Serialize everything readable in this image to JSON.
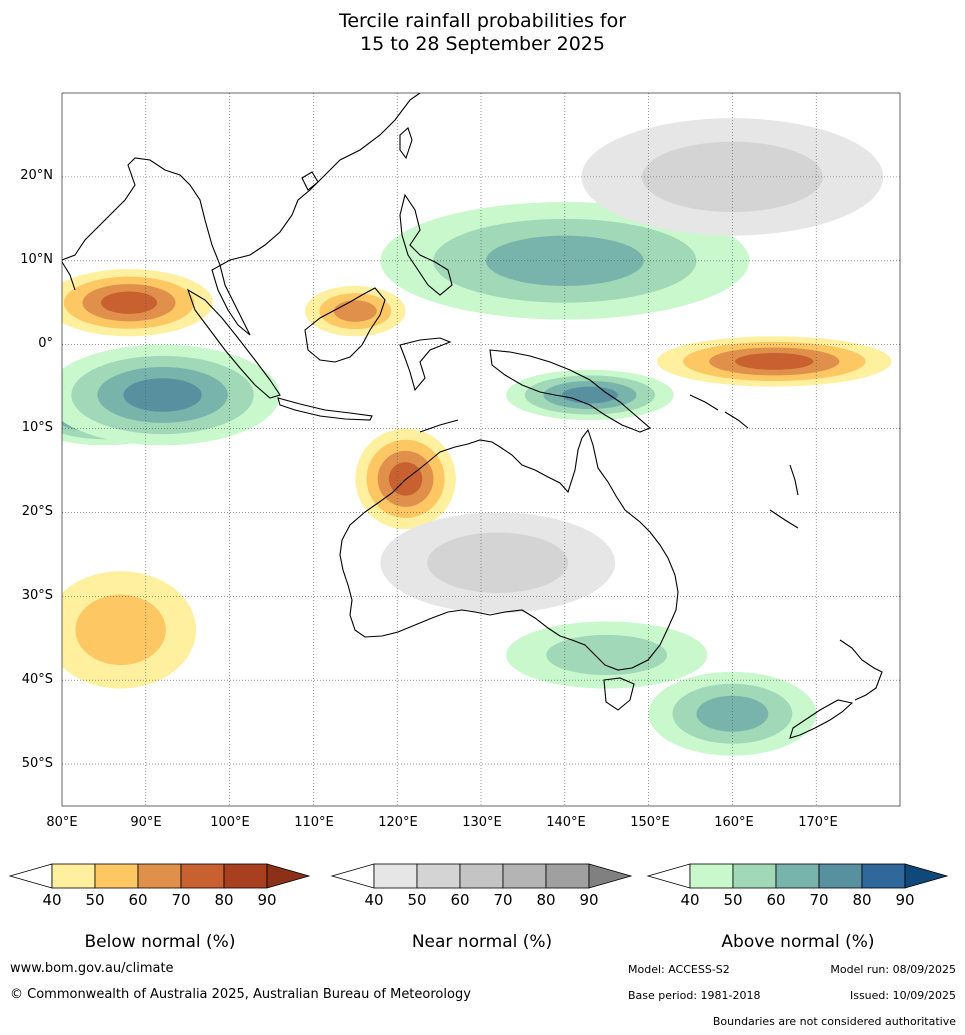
{
  "title_line1": "Tercile rainfall probabilities for",
  "title_line2": "15 to 28 September 2025",
  "lat_labels": [
    "20°N",
    "10°N",
    "0°",
    "10°S",
    "20°S",
    "30°S",
    "40°S",
    "50°S"
  ],
  "lon_labels": [
    "80°E",
    "90°E",
    "100°E",
    "110°E",
    "120°E",
    "130°E",
    "140°E",
    "150°E",
    "160°E",
    "170°E"
  ],
  "colorbars": [
    {
      "title": "Below normal (%)",
      "ticks": [
        "40",
        "50",
        "60",
        "70",
        "80",
        "90"
      ],
      "colors": [
        "#fff0a0",
        "#fdc864",
        "#e0904a",
        "#c86030",
        "#a84020"
      ],
      "tip_color": "#8c3018"
    },
    {
      "title": "Near normal (%)",
      "ticks": [
        "40",
        "50",
        "60",
        "70",
        "80",
        "90"
      ],
      "colors": [
        "#e6e6e6",
        "#d4d4d4",
        "#c4c4c4",
        "#b4b4b4",
        "#a0a0a0"
      ],
      "tip_color": "#808080"
    },
    {
      "title": "Above normal (%)",
      "ticks": [
        "40",
        "50",
        "60",
        "70",
        "80",
        "90"
      ],
      "colors": [
        "#c8f8cc",
        "#a0d8b8",
        "#78b4ac",
        "#5890a0",
        "#30689c"
      ],
      "tip_color": "#10487c"
    }
  ],
  "footer": {
    "website": "www.bom.gov.au/climate",
    "copyright": "© Commonwealth of Australia 2025, Australian Bureau of Meteorology",
    "model": "Model: ACCESS-S2",
    "model_run": "Model run: 08/09/2025",
    "base_period": "Base period: 1981-2018",
    "issued": "Issued: 10/09/2025",
    "disclaimer": "Boundaries are not considered authoritative"
  },
  "map": {
    "lon_range": [
      80,
      180
    ],
    "lat_range": [
      -55,
      30
    ],
    "regions": [
      {
        "category": "above",
        "level": 4,
        "lon": 85,
        "lat": -8,
        "rx": 10,
        "ry": 4
      },
      {
        "category": "above",
        "level": 3,
        "lon": 92,
        "lat": -6,
        "rx": 14,
        "ry": 6
      },
      {
        "category": "above",
        "level": 2,
        "lon": 140,
        "lat": 10,
        "rx": 22,
        "ry": 7
      },
      {
        "category": "above",
        "level": 3,
        "lon": 143,
        "lat": -6,
        "rx": 10,
        "ry": 3
      },
      {
        "category": "above",
        "level": 1,
        "lon": 145,
        "lat": -37,
        "rx": 12,
        "ry": 4
      },
      {
        "category": "above",
        "level": 2,
        "lon": 160,
        "lat": -44,
        "rx": 10,
        "ry": 5
      },
      {
        "category": "below",
        "level": 3,
        "lon": 88,
        "lat": 5,
        "rx": 10,
        "ry": 4
      },
      {
        "category": "below",
        "level": 3,
        "lon": 165,
        "lat": -2,
        "rx": 14,
        "ry": 3
      },
      {
        "category": "below",
        "level": 3,
        "lon": 121,
        "lat": -16,
        "rx": 6,
        "ry": 6
      },
      {
        "category": "below",
        "level": 1,
        "lon": 87,
        "lat": -34,
        "rx": 9,
        "ry": 7
      },
      {
        "category": "below",
        "level": 2,
        "lon": 115,
        "lat": 4,
        "rx": 6,
        "ry": 3
      },
      {
        "category": "near",
        "level": 1,
        "lon": 160,
        "lat": 20,
        "rx": 18,
        "ry": 7
      },
      {
        "category": "near",
        "level": 1,
        "lon": 132,
        "lat": -26,
        "rx": 14,
        "ry": 6
      }
    ]
  }
}
